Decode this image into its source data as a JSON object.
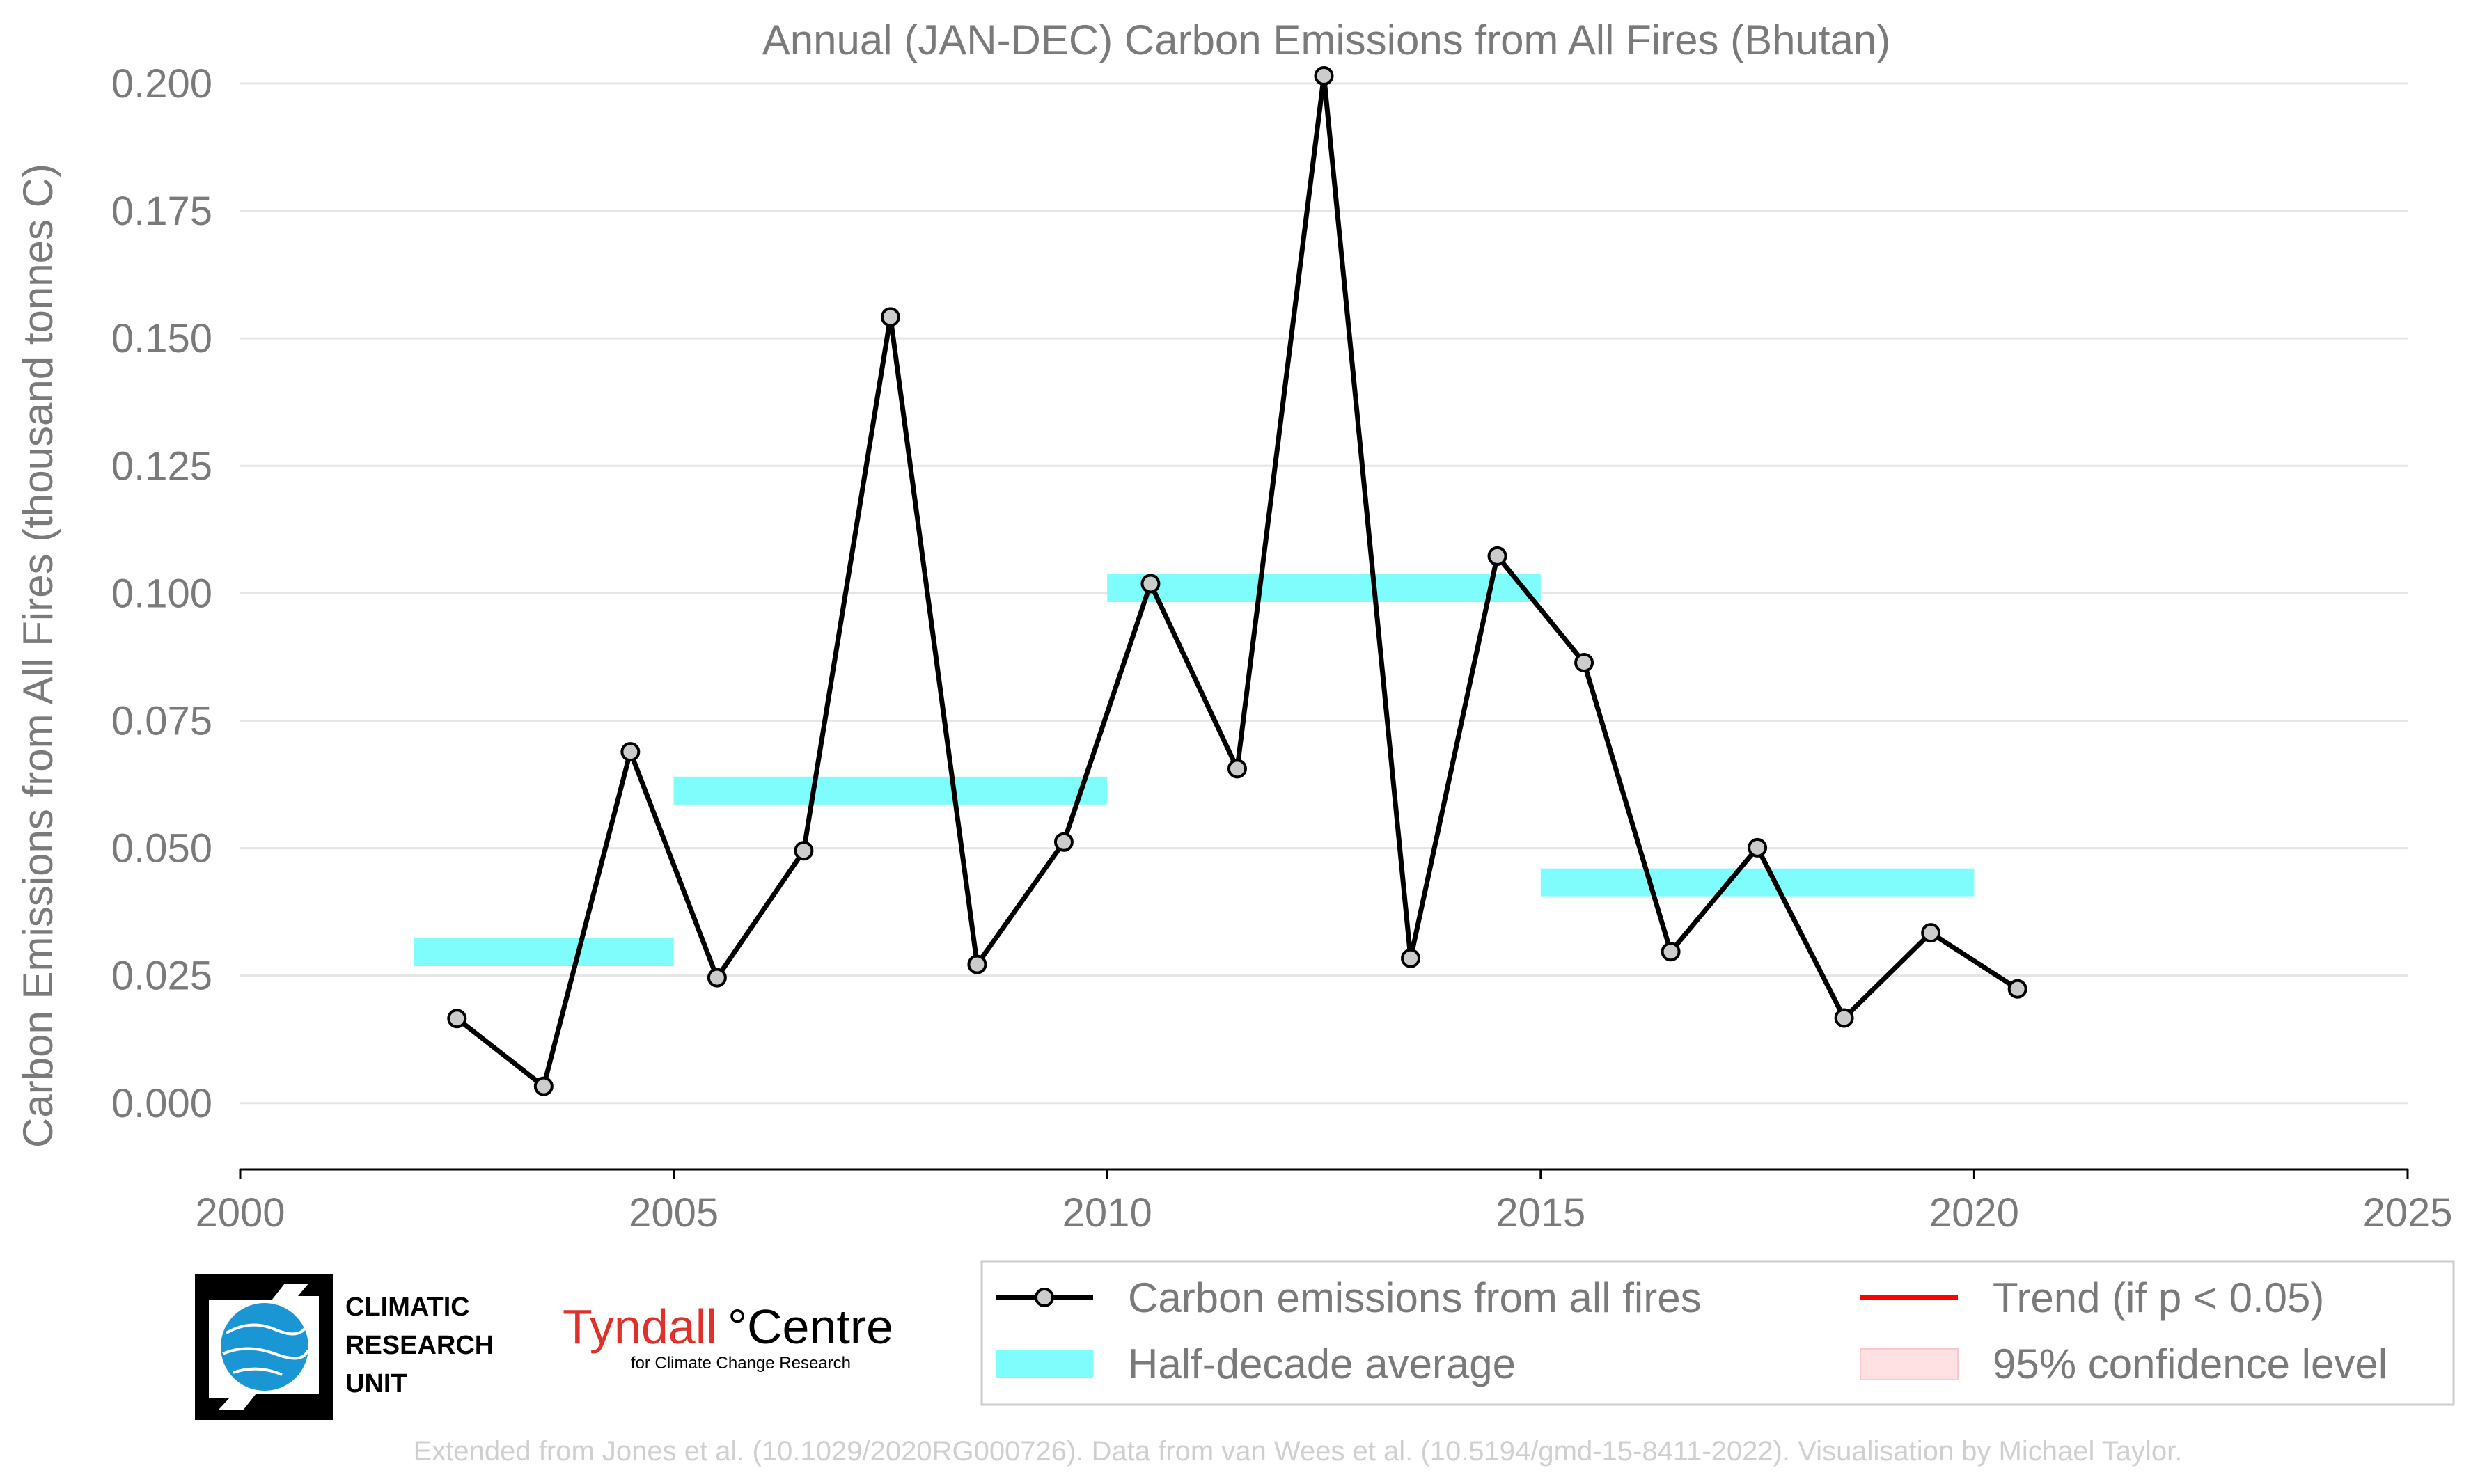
{
  "chart_data": {
    "type": "line",
    "title": "Annual (JAN-DEC) Carbon Emissions from All Fires (Bhutan)",
    "xlabel": "",
    "ylabel": "Carbon Emissions from All Fires (thousand tonnes C)",
    "xlim": [
      2000,
      2025
    ],
    "ylim": [
      -0.013,
      0.203
    ],
    "x_ticks": [
      "2000",
      "2005",
      "2010",
      "2015",
      "2020",
      "2025"
    ],
    "y_ticks": [
      "0.000",
      "0.025",
      "0.050",
      "0.075",
      "0.100",
      "0.125",
      "0.150",
      "0.175",
      "0.200"
    ],
    "grid": "horizontal",
    "series": [
      {
        "name": "Carbon emissions from all fires",
        "color": "#000000",
        "x": [
          2002.5,
          2003.5,
          2004.5,
          2005.5,
          2006.5,
          2007.5,
          2008.5,
          2009.5,
          2010.5,
          2011.5,
          2012.5,
          2013.5,
          2014.5,
          2015.5,
          2016.5,
          2017.5,
          2018.5,
          2019.5,
          2020.5
        ],
        "values": [
          0.0166,
          0.0033,
          0.0689,
          0.0246,
          0.0495,
          0.1542,
          0.0272,
          0.0512,
          0.1019,
          0.0656,
          0.2015,
          0.0284,
          0.1073,
          0.0864,
          0.0297,
          0.0501,
          0.0167,
          0.0334,
          0.0224
        ]
      }
    ],
    "half_decade_averages": {
      "name": "Half-decade average",
      "color": "#7ffcfc",
      "segments": [
        {
          "x_start": 2002,
          "x_end": 2005,
          "value": 0.0296
        },
        {
          "x_start": 2005,
          "x_end": 2010,
          "value": 0.0613
        },
        {
          "x_start": 2010,
          "x_end": 2015,
          "value": 0.101
        },
        {
          "x_start": 2015,
          "x_end": 2020,
          "value": 0.0433
        }
      ]
    },
    "legend": {
      "placement": "bottom-right",
      "items": [
        {
          "label": "Carbon emissions from all fires",
          "kind": "line-marker",
          "color": "#000000"
        },
        {
          "label": "Trend (if p < 0.05)",
          "kind": "line",
          "color": "#ff0000"
        },
        {
          "label": "Half-decade average",
          "kind": "patch",
          "color": "#7ffcfc"
        },
        {
          "label": "95% confidence level",
          "kind": "patch",
          "color": "#ffe0e3"
        }
      ]
    },
    "footer": "Extended from Jones et al. (10.1029/2020RG000726). Data from van Wees et al. (10.5194/gmd-15-8411-2022). Visualisation by Michael Taylor."
  },
  "logos": {
    "cru": {
      "line1": "CLIMATIC",
      "line2": "RESEARCH",
      "line3": "UNIT"
    },
    "tyndall": {
      "main_red": "Tyndall",
      "main_black": "°Centre",
      "sub": "for Climate Change Research"
    }
  },
  "colors": {
    "text": "#7a7a7a",
    "grid": "#e5e5e5",
    "avg_bar": "#7ffcfc",
    "trend": "#ff0000",
    "ci_patch": "#ffe0e3",
    "marker_fill": "#cccccc",
    "cru_blue": "#1b96d4"
  }
}
